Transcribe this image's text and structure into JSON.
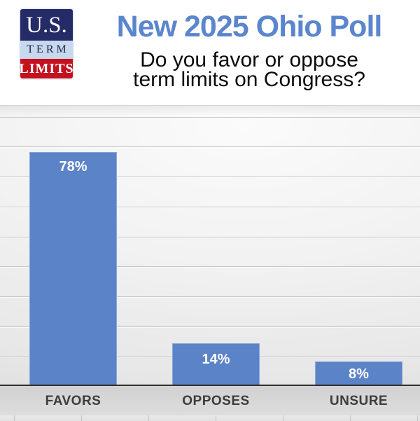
{
  "header": {
    "logo": {
      "us": "U.S.",
      "term": "TERM",
      "limits": "LIMITS"
    },
    "title": "New 2025 Ohio Poll",
    "question_line1": "Do you favor or oppose",
    "question_line2": "term limits on Congress?"
  },
  "colors": {
    "title_blue": "#5b86ce",
    "bar_blue": "#5b83c8",
    "logo_navy": "#242b66",
    "logo_light_blue": "#c8d8ef",
    "logo_red": "#c5101d",
    "category_label": "#3d3d3d",
    "value_label": "#ffffff"
  },
  "chart_data": {
    "type": "bar",
    "title": "New 2025 Ohio Poll",
    "subtitle": "Do you favor or oppose term limits on Congress?",
    "categories": [
      "FAVORS",
      "OPPOSES",
      "UNSURE"
    ],
    "values": [
      78,
      14,
      8
    ],
    "value_labels": [
      "78%",
      "14%",
      "8%"
    ],
    "unit": "%",
    "ylim": [
      0,
      100
    ],
    "gridline_interval": 10,
    "grid": "horizontal",
    "legend": "none",
    "bar_color": "#5b83c8",
    "value_label_position": "inside-top",
    "axis_labels_position": "bottom"
  }
}
